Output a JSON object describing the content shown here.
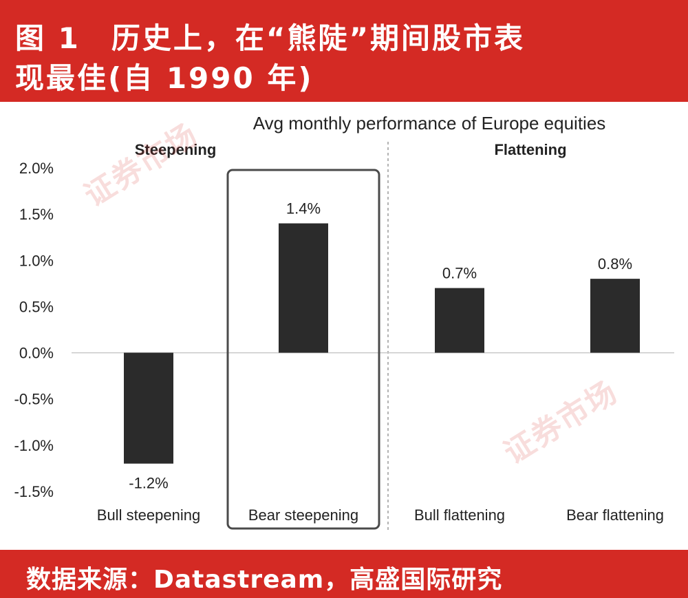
{
  "header": {
    "title_line1": "图 1　历史上，在“熊陡”期间股市表",
    "title_line2": "现最佳(自 1990 年)"
  },
  "footer": {
    "source": "数据来源：Datastream，高盛国际研究"
  },
  "watermark": {
    "text": "证券市场"
  },
  "colors": {
    "brand_red": "#d42a24",
    "bar": "#2b2b2b"
  },
  "chart_data": {
    "type": "bar",
    "title": "Avg monthly performance of Europe equities",
    "groups": [
      {
        "label": "Steepening",
        "categories": [
          "Bull steepening",
          "Bear steepening"
        ]
      },
      {
        "label": "Flattening",
        "categories": [
          "Bull flattening",
          "Bear flattening"
        ]
      }
    ],
    "categories": [
      "Bull steepening",
      "Bear steepening",
      "Bull flattening",
      "Bear flattening"
    ],
    "values": [
      -1.2,
      1.4,
      0.7,
      0.8
    ],
    "value_labels": [
      "-1.2%",
      "1.4%",
      "0.7%",
      "0.8%"
    ],
    "ylim": [
      -1.5,
      2.0
    ],
    "yticks": [
      2.0,
      1.5,
      1.0,
      0.5,
      0.0,
      -0.5,
      -1.0,
      -1.5
    ],
    "ytick_labels": [
      "2.0%",
      "1.5%",
      "1.0%",
      "0.5%",
      "0.0%",
      "-0.5%",
      "-1.0%",
      "-1.5%"
    ],
    "highlighted_category": "Bear steepening",
    "grid": false,
    "legend": "none"
  }
}
